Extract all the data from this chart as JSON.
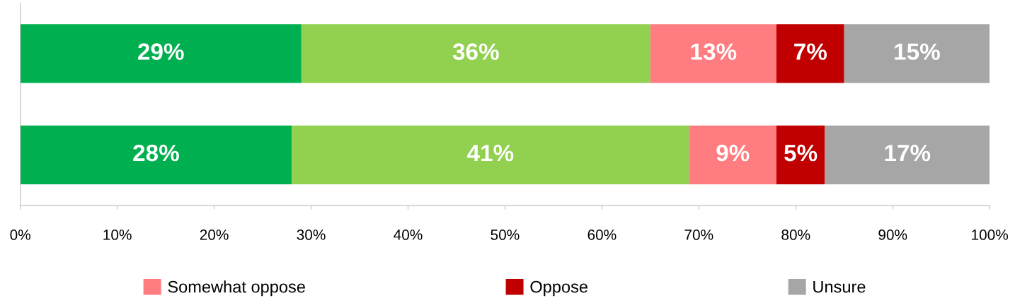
{
  "chart_data": {
    "type": "bar",
    "orientation": "horizontal",
    "stacked": true,
    "categories": [
      null,
      null
    ],
    "series": [
      {
        "color": "#00b050",
        "values": [
          29,
          28
        ],
        "value_labels": [
          "29%",
          "28%"
        ]
      },
      {
        "color": "#92d050",
        "values": [
          36,
          41
        ],
        "value_labels": [
          "36%",
          "41%"
        ]
      },
      {
        "name": "Somewhat oppose",
        "color": "#ff7c80",
        "values": [
          13,
          9
        ],
        "value_labels": [
          "13%",
          "9%"
        ]
      },
      {
        "name": "Oppose",
        "color": "#c00000",
        "values": [
          7,
          5
        ],
        "value_labels": [
          "7%",
          "5%"
        ]
      },
      {
        "name": "Unsure",
        "color": "#a6a6a6",
        "values": [
          15,
          17
        ],
        "value_labels": [
          "15%",
          "17%"
        ]
      }
    ],
    "xlim": [
      0,
      100
    ],
    "xticks": [
      {
        "value": 0,
        "label": "0%"
      },
      {
        "value": 10,
        "label": "10%"
      },
      {
        "value": 20,
        "label": "20%"
      },
      {
        "value": 30,
        "label": "30%"
      },
      {
        "value": 40,
        "label": "40%"
      },
      {
        "value": 50,
        "label": "50%"
      },
      {
        "value": 60,
        "label": "60%"
      },
      {
        "value": 70,
        "label": "70%"
      },
      {
        "value": 80,
        "label": "80%"
      },
      {
        "value": 90,
        "label": "90%"
      },
      {
        "value": 100,
        "label": "100%"
      }
    ],
    "legend": "bottom",
    "grid": false
  }
}
